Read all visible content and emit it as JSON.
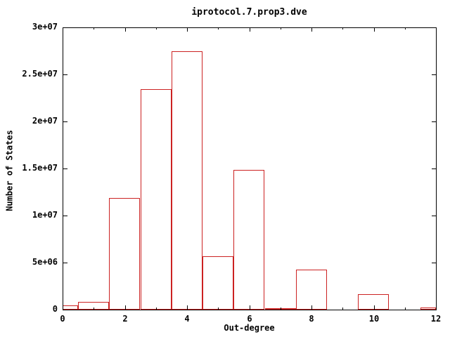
{
  "window": {
    "background": "#ffffff"
  },
  "colors": {
    "bar_outline": "#cc2222",
    "axis": "#000000",
    "text": "#000000",
    "background": "#ffffff"
  },
  "chart_data": {
    "type": "bar",
    "subtype": "histogram-outline",
    "title": "iprotocol.7.prop3.dve",
    "xlabel": "Out-degree",
    "ylabel": "Number of States",
    "xlim": [
      0,
      12
    ],
    "ylim": [
      0,
      30000000
    ],
    "grid": false,
    "legend": "none",
    "x_major_ticks": [
      0,
      2,
      4,
      6,
      8,
      10,
      12
    ],
    "x_major_tick_labels": [
      "0",
      "2",
      "4",
      "6",
      "8",
      "10",
      "12"
    ],
    "x_minor_ticks": [
      1,
      3,
      5,
      7,
      9,
      11
    ],
    "y_ticks": [
      0,
      5000000,
      10000000,
      15000000,
      20000000,
      25000000,
      30000000
    ],
    "y_tick_labels": [
      "0",
      "5e+06",
      "1e+07",
      "1.5e+07",
      "2e+07",
      "2.5e+07",
      "3e+07"
    ],
    "bars": [
      {
        "x_start": 0,
        "x_end": 0.5,
        "x_center": 0,
        "value": 450000
      },
      {
        "x_start": 0.5,
        "x_end": 1.5,
        "x_center": 1,
        "value": 800000
      },
      {
        "x_start": 1.5,
        "x_end": 2.5,
        "x_center": 2,
        "value": 11900000
      },
      {
        "x_start": 2.5,
        "x_end": 3.5,
        "x_center": 3,
        "value": 23400000
      },
      {
        "x_start": 3.5,
        "x_end": 4.5,
        "x_center": 4,
        "value": 27450000
      },
      {
        "x_start": 4.5,
        "x_end": 5.5,
        "x_center": 5,
        "value": 5700000
      },
      {
        "x_start": 5.5,
        "x_end": 6.5,
        "x_center": 6,
        "value": 14850000
      },
      {
        "x_start": 6.5,
        "x_end": 7.5,
        "x_center": 7,
        "value": 150000
      },
      {
        "x_start": 7.5,
        "x_end": 8.5,
        "x_center": 8,
        "value": 4250000
      },
      {
        "x_start": 8.5,
        "x_end": 9.5,
        "x_center": 9,
        "value": 0
      },
      {
        "x_start": 9.5,
        "x_end": 10.5,
        "x_center": 10,
        "value": 1650000
      },
      {
        "x_start": 10.5,
        "x_end": 11.5,
        "x_center": 11,
        "value": 0
      },
      {
        "x_start": 11.5,
        "x_end": 12,
        "x_center": 12,
        "value": 200000
      }
    ]
  }
}
